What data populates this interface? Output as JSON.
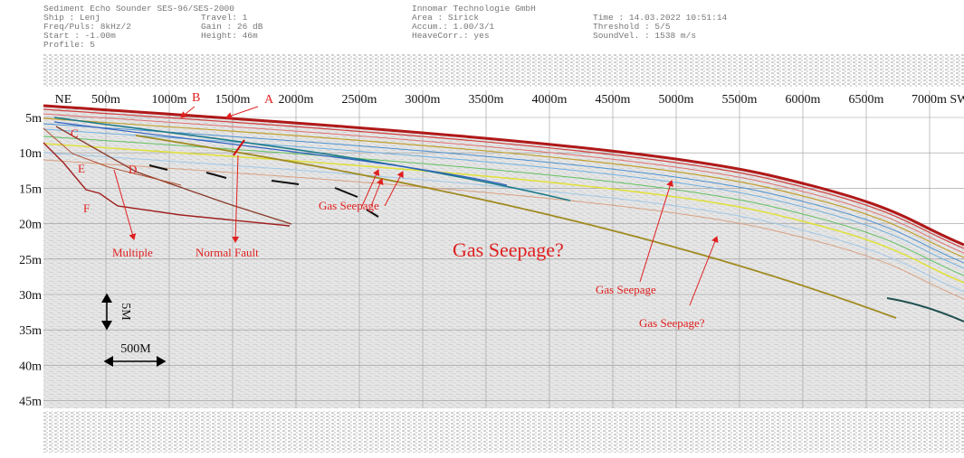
{
  "header": {
    "columns": [
      [
        "Sediment Echo Sounder SES-96/SES-2000",
        "Ship  : Lenj",
        "Freq/Puls: 8kHz/2",
        "Start : -1.00m",
        "Profile: 5"
      ],
      [
        "Travel: 1",
        "Gain  : 26 dB",
        "Height: 46m"
      ],
      [
        "Innomar Technologie GmbH",
        "Area  : Sirick",
        "Accum.: 1.00/3/1",
        "HeaveCorr.: yes"
      ],
      [
        "Time  : 14.03.2022 10:51:14",
        "Threshold : 5/5",
        "SoundVel. : 1538 m/s"
      ]
    ]
  },
  "axes": {
    "x_labels": [
      "NE",
      "500m",
      "1000m",
      "1500m",
      "2000m",
      "2500m",
      "3000m",
      "3500m",
      "4000m",
      "4500m",
      "5000m",
      "5500m",
      "6000m",
      "6500m",
      "7000m SW"
    ],
    "y_labels": [
      "5m",
      "10m",
      "15m",
      "20m",
      "25m",
      "30m",
      "35m",
      "40m",
      "45m"
    ]
  },
  "scale": {
    "depth": "5M",
    "distance": "500M"
  },
  "annotations": [
    "A",
    "B",
    "C",
    "D",
    "E",
    "F",
    "Gas Seepage",
    "Multiple",
    "Normal Fault",
    "Gas Seepage?",
    "Gas Seepage",
    "Gas Seepage?"
  ]
}
